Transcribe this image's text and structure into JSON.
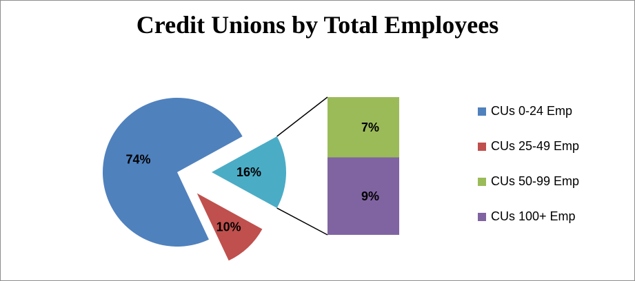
{
  "chart_data": {
    "type": "pie",
    "subtype": "bar-of-pie",
    "title": "Credit Unions by Total Employees",
    "categories": [
      "CUs 0-24 Emp",
      "CUs 25-49 Emp",
      "CUs 50-99 Emp",
      "CUs 100+ Emp"
    ],
    "values": [
      74,
      10,
      7,
      9
    ],
    "labels": [
      "74%",
      "10%",
      "7%",
      "9%"
    ],
    "colors": [
      "#4f81bd",
      "#c0504d",
      "#9bbb59",
      "#8064a2"
    ],
    "secondary_group": {
      "members": [
        "CUs 50-99 Emp",
        "CUs 100+ Emp"
      ],
      "value": 16,
      "label": "16%",
      "color": "#4bacc6"
    },
    "legend_position": "right",
    "grid": false
  }
}
